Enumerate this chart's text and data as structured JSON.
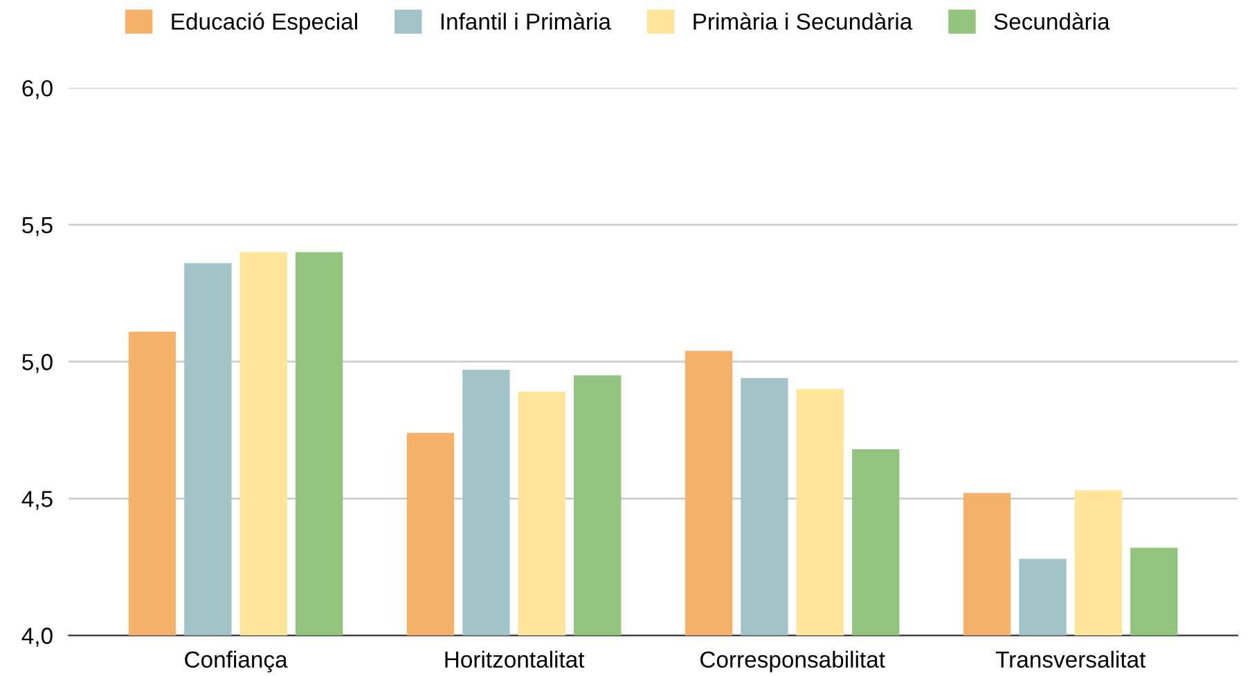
{
  "chart_data": {
    "type": "bar",
    "categories": [
      "Confiança",
      "Horitzontalitat",
      "Corresponsabilitat",
      "Transversalitat"
    ],
    "series": [
      {
        "name": "Educació Especial",
        "color": "#f6b26b",
        "values": [
          5.11,
          4.74,
          5.04,
          4.52
        ]
      },
      {
        "name": "Infantil i Primària",
        "color": "#a2c4c9",
        "values": [
          5.36,
          4.97,
          4.94,
          4.28
        ]
      },
      {
        "name": "Primària i Secundària",
        "color": "#ffe599",
        "values": [
          5.4,
          4.89,
          4.9,
          4.53
        ]
      },
      {
        "name": "Secundària",
        "color": "#93c47d",
        "values": [
          5.4,
          4.95,
          4.68,
          4.32
        ]
      }
    ],
    "ylim": [
      4.0,
      6.0
    ],
    "yticks": [
      {
        "value": 4.0,
        "label": "4,0"
      },
      {
        "value": 4.5,
        "label": "4,5"
      },
      {
        "value": 5.0,
        "label": "5,0"
      },
      {
        "value": 5.5,
        "label": "5,5"
      },
      {
        "value": 6.0,
        "label": "6,0"
      }
    ],
    "grid": "y",
    "legend": "top"
  }
}
